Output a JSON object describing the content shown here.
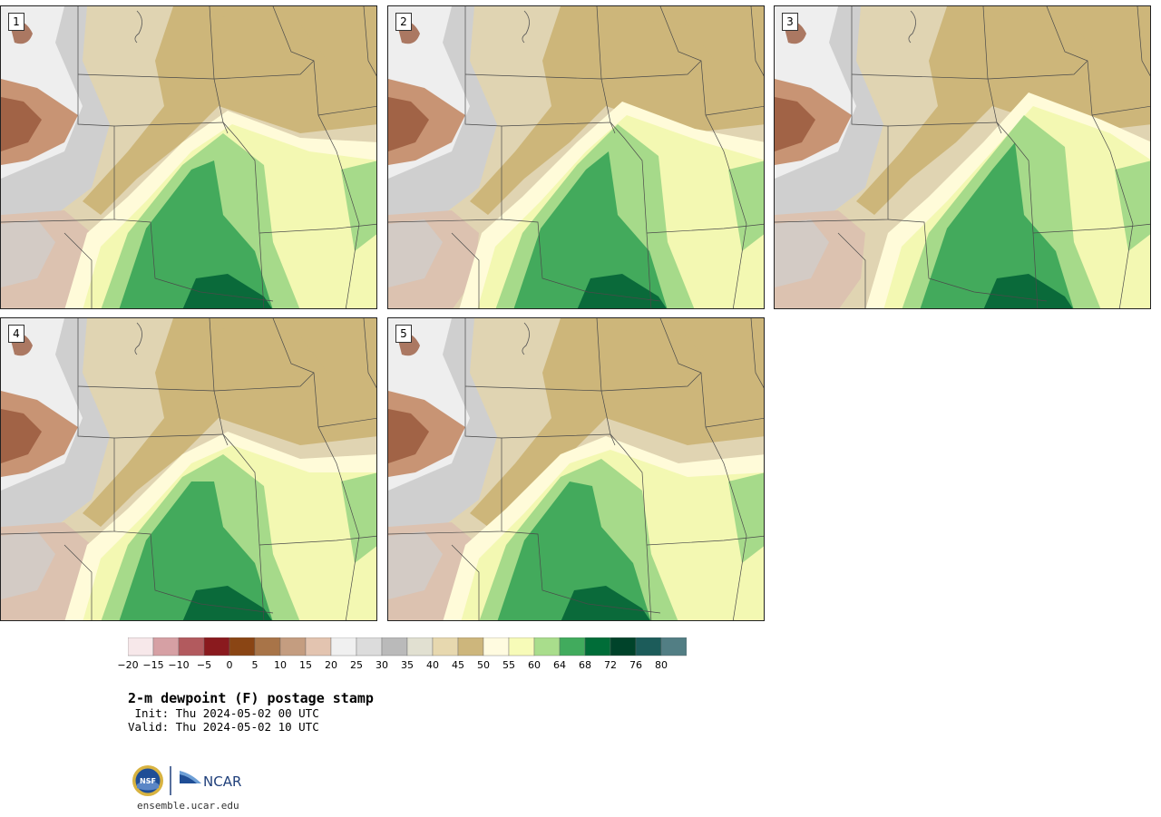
{
  "panels": [
    {
      "label": "1"
    },
    {
      "label": "2"
    },
    {
      "label": "3"
    },
    {
      "label": "4"
    },
    {
      "label": "5"
    }
  ],
  "colorbar": {
    "ticks": [
      "−20",
      "−15",
      "−10",
      "−5",
      "0",
      "5",
      "10",
      "15",
      "20",
      "25",
      "30",
      "35",
      "40",
      "45",
      "50",
      "55",
      "60",
      "64",
      "68",
      "72",
      "76",
      "80"
    ],
    "colors": [
      "#f7e8ea",
      "#d6a0a4",
      "#b25a5e",
      "#8a1a1e",
      "#8a4514",
      "#a87448",
      "#c49d80",
      "#e3c4b0",
      "#f0f0f0",
      "#dcdcdc",
      "#bababa",
      "#e1e0d1",
      "#e7d8af",
      "#cdb67c",
      "#fffbe0",
      "#f7fbb8",
      "#a9dd8c",
      "#41ab5d",
      "#006d38",
      "#00432a",
      "#1c5c5a",
      "#527e84"
    ]
  },
  "title": "2-m dewpoint (F) postage stamp",
  "init": " Init: Thu 2024-05-02 00 UTC",
  "valid": "Valid: Thu 2024-05-02 10 UTC",
  "logos": {
    "nsf": "NSF",
    "ncar": "NCAR"
  },
  "website": "ensemble.ucar.edu"
}
